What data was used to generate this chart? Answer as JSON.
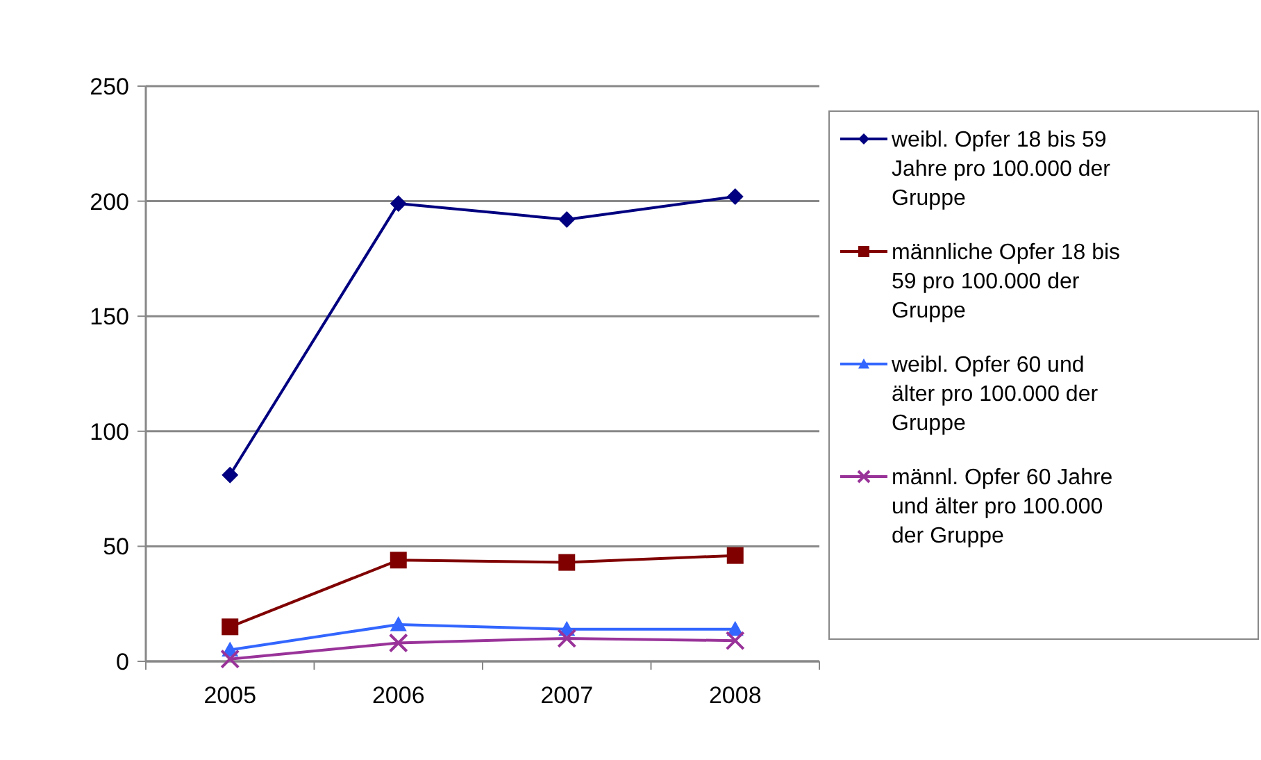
{
  "chart_data": {
    "type": "line",
    "categories": [
      "2005",
      "2006",
      "2007",
      "2008"
    ],
    "series": [
      {
        "name": "weibl. Opfer 18 bis 59 Jahre pro 100.000 der Gruppe",
        "color": "#000080",
        "marker": "diamond",
        "values": [
          81,
          199,
          192,
          202
        ]
      },
      {
        "name": "männliche Opfer 18 bis 59 pro 100.000 der Gruppe",
        "color": "#800000",
        "marker": "square",
        "values": [
          15,
          44,
          43,
          46
        ]
      },
      {
        "name": "weibl. Opfer 60 und älter pro 100.000 der Gruppe",
        "color": "#3366ff",
        "marker": "triangle",
        "values": [
          5,
          16,
          14,
          14
        ]
      },
      {
        "name": "männl. Opfer 60 Jahre und älter pro 100.000 der Gruppe",
        "color": "#993399",
        "marker": "cross",
        "values": [
          1,
          8,
          10,
          9
        ]
      }
    ],
    "ylim": [
      0,
      250
    ],
    "yticks": [
      0,
      50,
      100,
      150,
      200,
      250
    ],
    "grid": "y",
    "legend": "right",
    "line_style": "solid"
  }
}
